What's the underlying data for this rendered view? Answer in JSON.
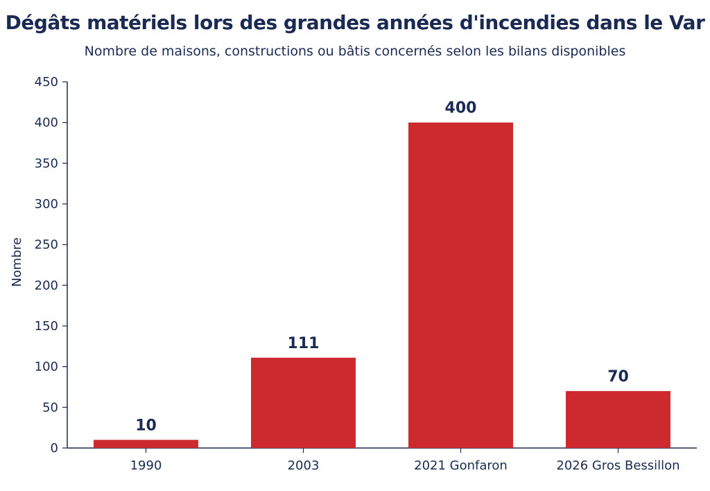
{
  "colors": {
    "bar": "#cc2a2e",
    "text": "#1a2a52",
    "axis": "#1a2a52"
  },
  "chart_data": {
    "type": "bar",
    "title": "Dégâts matériels lors des grandes années d'incendies dans le Var",
    "subtitle": "Nombre de maisons, constructions ou bâtis concernés selon les bilans disponibles",
    "xlabel": "",
    "ylabel": "Nombre",
    "categories": [
      "1990",
      "2003",
      "2021 Gonfaron",
      "2026 Gros Bessillon"
    ],
    "values": [
      10,
      111,
      400,
      70
    ],
    "data_labels": [
      "10",
      "111",
      "400",
      "70"
    ],
    "ylim": [
      0,
      450
    ],
    "yticks": [
      0,
      50,
      100,
      150,
      200,
      250,
      300,
      350,
      400,
      450
    ],
    "grid": false,
    "legend": "none"
  }
}
